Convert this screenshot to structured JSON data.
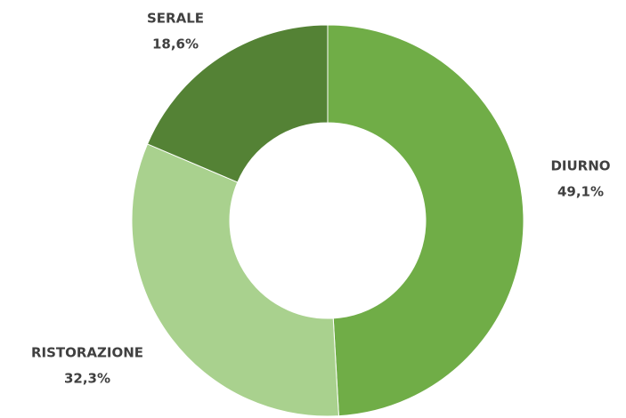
{
  "chart_data": {
    "type": "donut",
    "categories": [
      "DIURNO",
      "RISTORAZIONE",
      "SERALE"
    ],
    "values": [
      49.1,
      32.3,
      18.6
    ],
    "value_labels": [
      "49,1%",
      "32,3%",
      "18,6%"
    ],
    "colors": [
      "#70ad47",
      "#a9d18e",
      "#548235"
    ]
  }
}
